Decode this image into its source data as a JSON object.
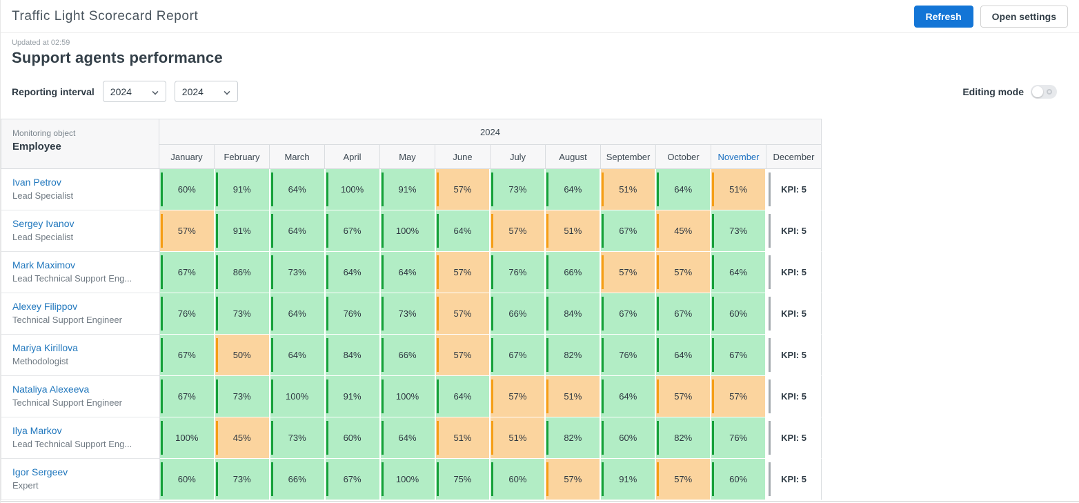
{
  "header": {
    "title": "Traffic Light Scorecard Report",
    "refresh_label": "Refresh",
    "open_settings_label": "Open settings"
  },
  "report": {
    "updated_at": "Updated at 02:59",
    "title": "Support agents performance",
    "reporting_interval_label": "Reporting interval",
    "interval_from": "2024",
    "interval_to": "2024",
    "editing_mode_label": "Editing mode",
    "editing_mode_on": false
  },
  "colors": {
    "accent_blue": "#1375d6",
    "link_blue": "#2077bd",
    "green_bg": "#b2edc5",
    "green_stripe": "#16a03a",
    "orange_bg": "#fbd49e",
    "orange_stripe": "#f59e16",
    "kpi_stripe": "#a5abb0"
  },
  "table": {
    "corner": {
      "label": "Monitoring object",
      "sublabel": "Employee"
    },
    "year_header": "2024",
    "months": [
      "January",
      "February",
      "March",
      "April",
      "May",
      "June",
      "July",
      "August",
      "September",
      "October",
      "November",
      "December"
    ],
    "highlighted_month": "November",
    "rows": [
      {
        "name": "Ivan Petrov",
        "role": "Lead Specialist",
        "values": [
          "60%",
          "91%",
          "64%",
          "100%",
          "91%",
          "57%",
          "73%",
          "64%",
          "51%",
          "64%",
          "51%"
        ],
        "statuses": [
          "g",
          "g",
          "g",
          "g",
          "g",
          "o",
          "g",
          "g",
          "o",
          "g",
          "o"
        ],
        "kpi": "KPI: 5"
      },
      {
        "name": "Sergey Ivanov",
        "role": "Lead Specialist",
        "values": [
          "57%",
          "91%",
          "64%",
          "67%",
          "100%",
          "64%",
          "57%",
          "51%",
          "67%",
          "45%",
          "73%"
        ],
        "statuses": [
          "o",
          "g",
          "g",
          "g",
          "g",
          "g",
          "o",
          "o",
          "g",
          "o",
          "g"
        ],
        "kpi": "KPI: 5"
      },
      {
        "name": "Mark Maximov",
        "role": "Lead Technical Support Eng...",
        "values": [
          "67%",
          "86%",
          "73%",
          "64%",
          "64%",
          "57%",
          "76%",
          "66%",
          "57%",
          "57%",
          "64%"
        ],
        "statuses": [
          "g",
          "g",
          "g",
          "g",
          "g",
          "o",
          "g",
          "g",
          "o",
          "o",
          "g"
        ],
        "kpi": "KPI: 5"
      },
      {
        "name": "Alexey Filippov",
        "role": "Technical Support Engineer",
        "values": [
          "76%",
          "73%",
          "64%",
          "76%",
          "73%",
          "57%",
          "66%",
          "84%",
          "67%",
          "67%",
          "60%"
        ],
        "statuses": [
          "g",
          "g",
          "g",
          "g",
          "g",
          "o",
          "g",
          "g",
          "g",
          "g",
          "g"
        ],
        "kpi": "KPI: 5"
      },
      {
        "name": "Mariya Kirillova",
        "role": "Methodologist",
        "values": [
          "67%",
          "50%",
          "64%",
          "84%",
          "66%",
          "57%",
          "67%",
          "82%",
          "76%",
          "64%",
          "67%"
        ],
        "statuses": [
          "g",
          "o",
          "g",
          "g",
          "g",
          "o",
          "g",
          "g",
          "g",
          "g",
          "g"
        ],
        "kpi": "KPI: 5"
      },
      {
        "name": "Nataliya Alexeeva",
        "role": "Technical Support Engineer",
        "values": [
          "67%",
          "73%",
          "100%",
          "91%",
          "100%",
          "64%",
          "57%",
          "51%",
          "64%",
          "57%",
          "57%"
        ],
        "statuses": [
          "g",
          "g",
          "g",
          "g",
          "g",
          "g",
          "o",
          "o",
          "g",
          "o",
          "o"
        ],
        "kpi": "KPI: 5"
      },
      {
        "name": "Ilya Markov",
        "role": "Lead Technical Support Eng...",
        "values": [
          "100%",
          "45%",
          "73%",
          "60%",
          "64%",
          "51%",
          "51%",
          "82%",
          "60%",
          "82%",
          "76%"
        ],
        "statuses": [
          "g",
          "o",
          "g",
          "g",
          "g",
          "o",
          "o",
          "g",
          "g",
          "g",
          "g"
        ],
        "kpi": "KPI: 5"
      },
      {
        "name": "Igor Sergeev",
        "role": "Expert",
        "values": [
          "60%",
          "73%",
          "66%",
          "67%",
          "100%",
          "75%",
          "60%",
          "57%",
          "91%",
          "57%",
          "60%"
        ],
        "statuses": [
          "g",
          "g",
          "g",
          "g",
          "g",
          "g",
          "g",
          "o",
          "g",
          "o",
          "g"
        ],
        "kpi": "KPI: 5"
      }
    ]
  }
}
